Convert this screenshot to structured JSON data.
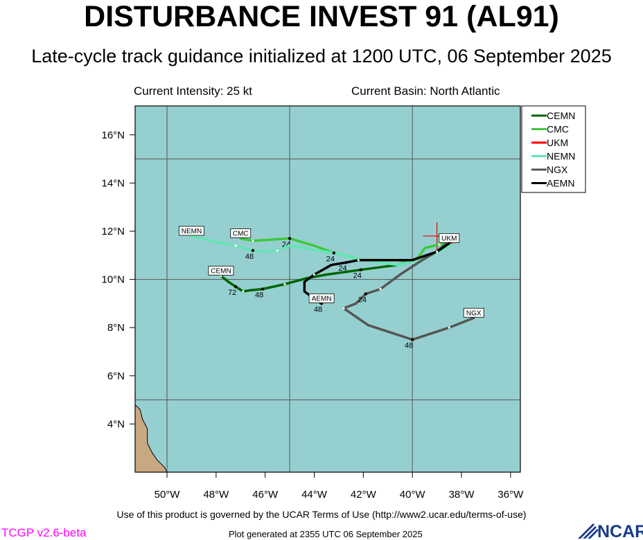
{
  "header": {
    "title": "DISTURBANCE INVEST 91 (AL91)",
    "subtitle": "Late-cycle track guidance initialized at 1200 UTC, 06 September 2025",
    "intensity": "Current Intensity: 25 kt",
    "basin": "Current Basin: North Atlantic"
  },
  "footer": {
    "terms": "Use of this product is governed by the UCAR Terms of Use (http://www2.ucar.edu/terms-of-use)",
    "version": "TCGP v2.6-beta",
    "generated": "Plot generated at 2355 UTC   06 September 2025",
    "logo_text": "NCAR"
  },
  "colors": {
    "ocean": "#96cfcf",
    "land": "#c8a882",
    "grid": "#555555"
  },
  "chart_data": {
    "type": "line",
    "map": true,
    "xlim": [
      -51.3,
      -35.6
    ],
    "ylim": [
      2.0,
      17.2
    ],
    "x_ticks": [
      -50,
      -48,
      -46,
      -44,
      -42,
      -40,
      -38,
      -36
    ],
    "x_tick_labels": [
      "50°W",
      "48°W",
      "46°W",
      "44°W",
      "42°W",
      "40°W",
      "38°W",
      "36°W"
    ],
    "y_ticks": [
      4,
      6,
      8,
      10,
      12,
      14,
      16
    ],
    "y_tick_labels": [
      "4°N",
      "6°N",
      "8°N",
      "10°N",
      "12°N",
      "14°N",
      "16°N"
    ],
    "grid_x": [
      -50,
      -45,
      -40
    ],
    "grid_y": [
      5,
      10,
      15
    ],
    "current_position": [
      -39.0,
      11.8
    ],
    "legend_position": "right",
    "series": [
      {
        "name": "CEMN",
        "color": "#006400",
        "show_end_label": true,
        "points": [
          [
            -38.4,
            11.6
          ],
          [
            -38.9,
            11.2
          ],
          [
            -39.8,
            10.8
          ],
          [
            -40.6,
            10.6
          ],
          [
            -42.1,
            10.4
          ],
          [
            -43.5,
            10.2
          ],
          [
            -44.3,
            10.05
          ],
          [
            -45.2,
            9.8
          ],
          [
            -46.1,
            9.6
          ],
          [
            -46.6,
            9.55
          ],
          [
            -46.9,
            9.5
          ],
          [
            -47.2,
            9.7
          ],
          [
            -47.5,
            9.9
          ],
          [
            -47.8,
            10.15
          ]
        ],
        "markers": [
          {
            "label": "24",
            "point": 4
          },
          {
            "label": "48",
            "point": 8
          },
          {
            "label": "72",
            "point": 11
          }
        ]
      },
      {
        "name": "CMC",
        "color": "#3cc83c",
        "show_end_label": true,
        "points": [
          [
            -38.4,
            11.5
          ],
          [
            -38.9,
            11.45
          ],
          [
            -39.5,
            11.3
          ],
          [
            -39.7,
            11.0
          ],
          [
            -40.0,
            10.7
          ],
          [
            -40.6,
            10.8
          ],
          [
            -42.0,
            10.8
          ],
          [
            -43.2,
            11.1
          ],
          [
            -44.0,
            11.4
          ],
          [
            -45.0,
            11.7
          ],
          [
            -46.5,
            11.6
          ],
          [
            -47.0,
            11.7
          ]
        ],
        "markers": [
          {
            "label": "24",
            "point": 9
          }
        ]
      },
      {
        "name": "UKM",
        "color": "#ff0000",
        "show_end_label": true,
        "points": [
          [
            -38.4,
            11.5
          ],
          [
            -38.5,
            11.5
          ]
        ],
        "markers": []
      },
      {
        "name": "NEMN",
        "color": "#64e6b4",
        "show_end_label": true,
        "points": [
          [
            -38.4,
            11.45
          ],
          [
            -39.0,
            11.1
          ],
          [
            -39.7,
            10.8
          ],
          [
            -40.6,
            10.6
          ],
          [
            -42.0,
            10.8
          ],
          [
            -43.2,
            11.1
          ],
          [
            -45.0,
            11.4
          ],
          [
            -45.5,
            11.2
          ],
          [
            -46.0,
            11.15
          ],
          [
            -46.5,
            11.2
          ],
          [
            -47.2,
            11.4
          ],
          [
            -48.0,
            11.55
          ],
          [
            -49.0,
            11.8
          ]
        ],
        "markers": [
          {
            "label": "24",
            "point": 5
          },
          {
            "label": "48",
            "point": 9
          }
        ]
      },
      {
        "name": "NGX",
        "color": "#555555",
        "show_end_label": true,
        "points": [
          [
            -38.6,
            11.5
          ],
          [
            -39.1,
            11.1
          ],
          [
            -39.6,
            10.8
          ],
          [
            -40.5,
            10.2
          ],
          [
            -41.3,
            9.6
          ],
          [
            -41.9,
            9.4
          ],
          [
            -42.3,
            9.0
          ],
          [
            -42.8,
            8.8
          ],
          [
            -41.8,
            8.1
          ],
          [
            -40.0,
            7.5
          ],
          [
            -38.5,
            8.0
          ],
          [
            -37.5,
            8.4
          ]
        ],
        "markers": [
          {
            "label": "24",
            "point": 5
          },
          {
            "label": "48",
            "point": 9
          }
        ]
      },
      {
        "name": "AEMN",
        "color": "#000000",
        "show_end_label": true,
        "points": [
          [
            -38.5,
            11.5
          ],
          [
            -39.0,
            11.15
          ],
          [
            -40.0,
            10.8
          ],
          [
            -41.0,
            10.8
          ],
          [
            -42.2,
            10.8
          ],
          [
            -42.7,
            10.7
          ],
          [
            -43.3,
            10.6
          ],
          [
            -44.0,
            10.2
          ],
          [
            -44.4,
            9.9
          ],
          [
            -44.4,
            9.5
          ],
          [
            -44.0,
            9.2
          ],
          [
            -43.7,
            9.0
          ]
        ],
        "markers": [
          {
            "label": "24",
            "point": 5
          },
          {
            "label": "48",
            "point": 11
          }
        ]
      }
    ],
    "land": [
      [
        [
          -51.3,
          4.8
        ],
        [
          -51.1,
          4.6
        ],
        [
          -51.0,
          4.2
        ],
        [
          -50.8,
          3.8
        ],
        [
          -50.8,
          3.2
        ],
        [
          -50.6,
          2.8
        ],
        [
          -50.4,
          2.5
        ],
        [
          -50.1,
          2.2
        ],
        [
          -50.0,
          2.0
        ],
        [
          -51.3,
          2.0
        ]
      ]
    ]
  }
}
